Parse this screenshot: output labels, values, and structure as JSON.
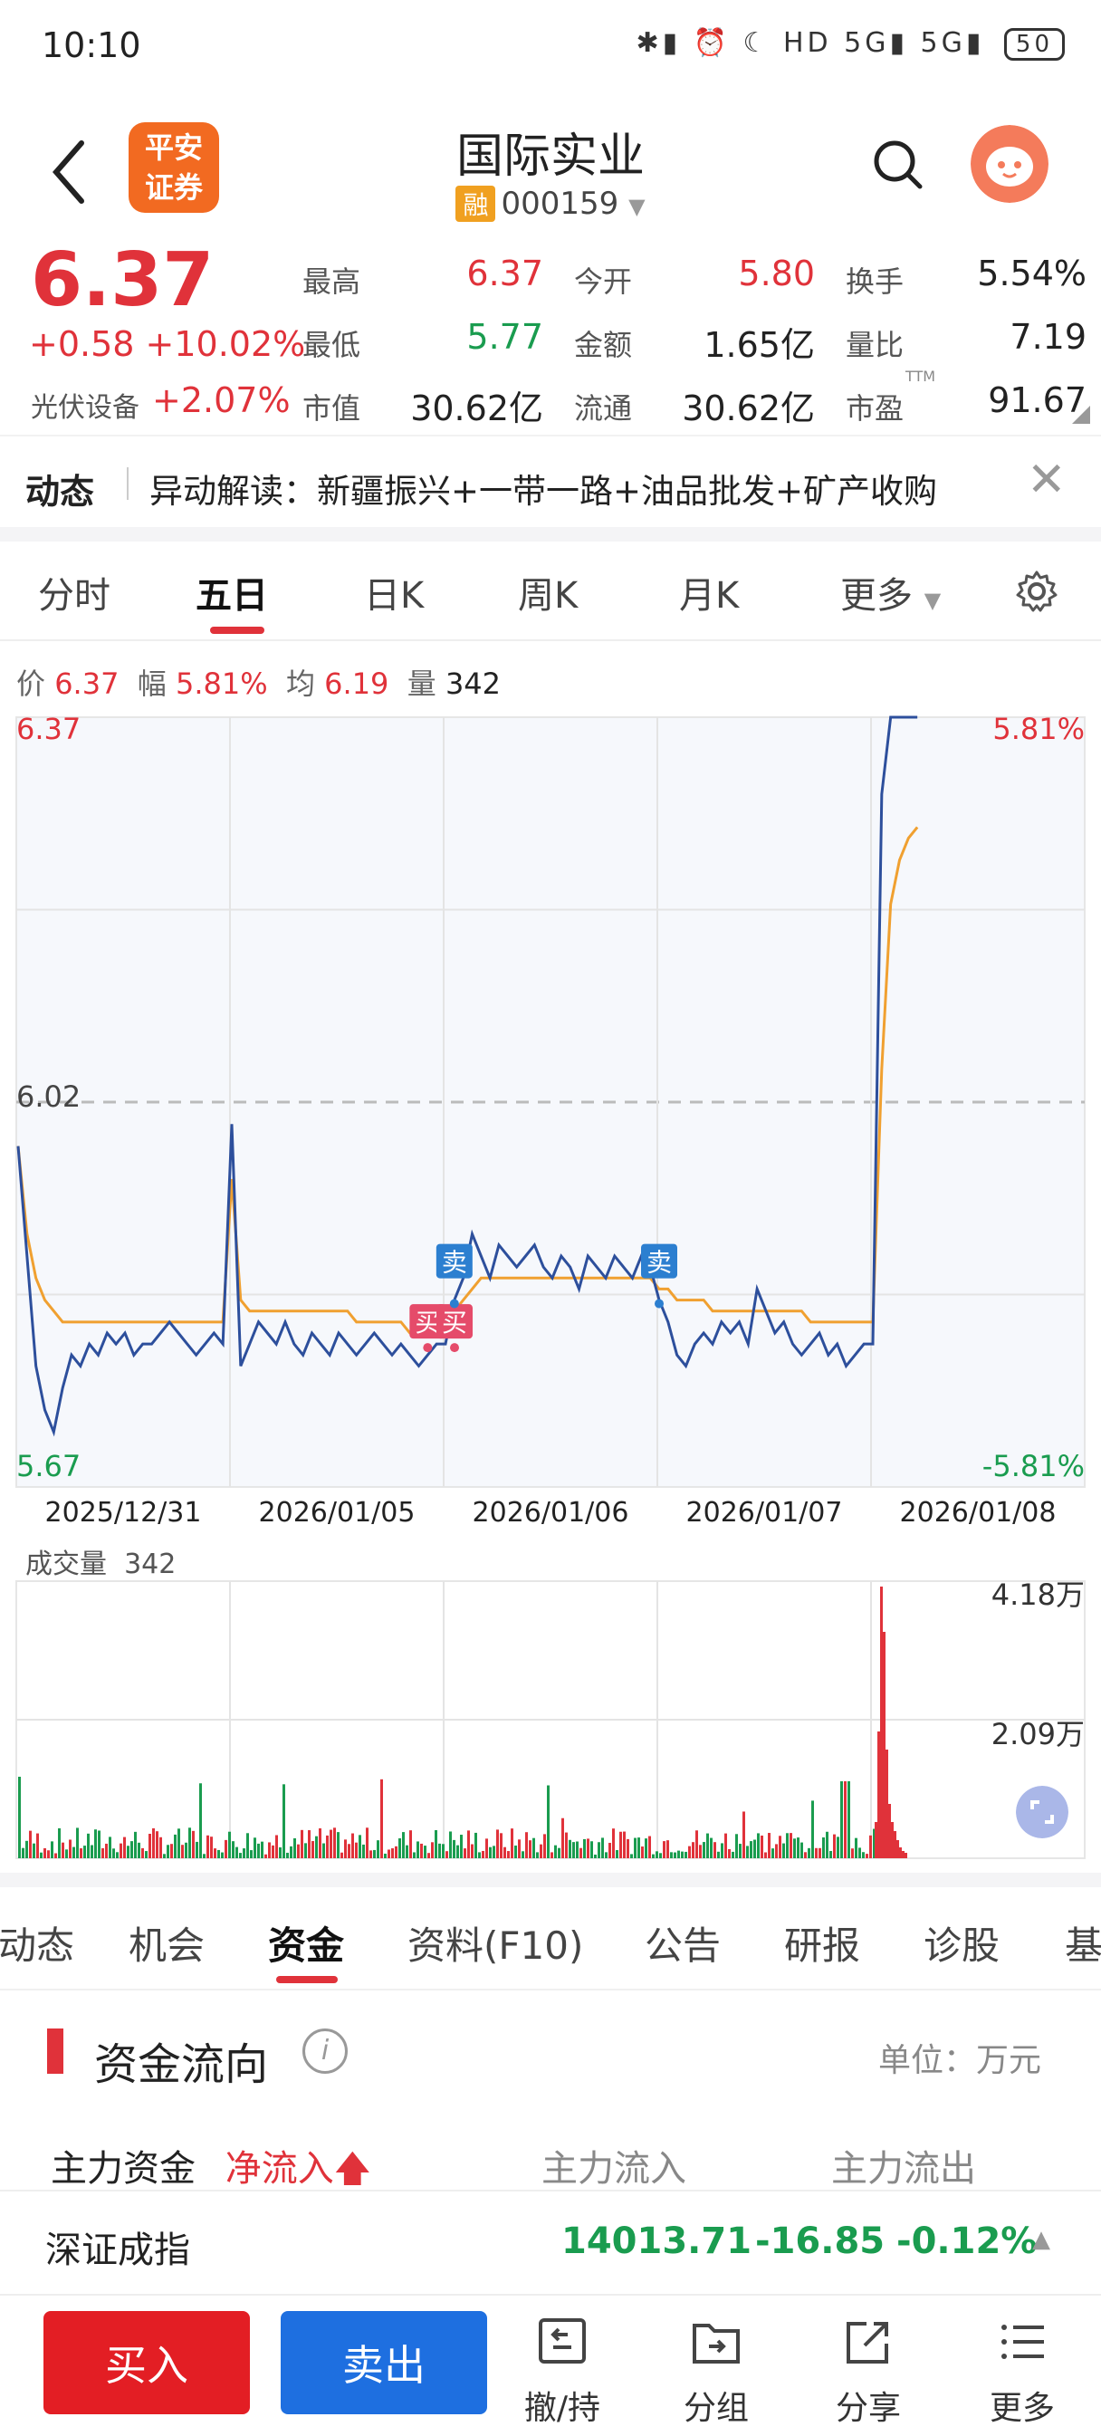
{
  "status_bar": {
    "time": "10:10",
    "icons": "✱▮ ⏰ ☾ HD 5G▮ 5G▮",
    "battery": "50"
  },
  "header": {
    "logo_text_1": "平安",
    "logo_text_2": "证券",
    "title": "国际实业",
    "rong": "融",
    "code": "000159"
  },
  "quote": {
    "price": "6.37",
    "change": "+0.58 +10.02%",
    "sector_name": "光伏设备",
    "sector_change": "+2.07%",
    "rows": [
      [
        {
          "label": "最高",
          "value": "6.37",
          "color": "red"
        },
        {
          "label": "今开",
          "value": "5.80",
          "color": "red"
        },
        {
          "label": "换手",
          "value": "5.54%",
          "color": "black"
        }
      ],
      [
        {
          "label": "最低",
          "value": "5.77",
          "color": "green"
        },
        {
          "label": "金额",
          "value": "1.65亿",
          "color": "black"
        },
        {
          "label": "量比",
          "value": "7.19",
          "color": "black"
        }
      ],
      [
        {
          "label": "市值",
          "value": "30.62亿",
          "color": "black"
        },
        {
          "label": "流通",
          "value": "30.62亿",
          "color": "black"
        },
        {
          "label": "市盈",
          "value": "91.67",
          "color": "black"
        }
      ]
    ],
    "ttm": "TTM"
  },
  "news": {
    "tag": "动态",
    "text": "异动解读：新疆振兴+一带一路+油品批发+矿产收购"
  },
  "period_tabs": [
    "分时",
    "五日",
    "日K",
    "周K",
    "月K",
    "更多"
  ],
  "chart_info": {
    "price_label": "价",
    "price": "6.37",
    "amp_label": "幅",
    "amp": "5.81%",
    "avg_label": "均",
    "avg": "6.19",
    "vol_label": "量",
    "vol": "342"
  },
  "chart_data": {
    "type": "line",
    "y_top_label": "6.37",
    "y_mid_label": "6.02",
    "y_bottom_label": "5.67",
    "pct_top_label": "5.81%",
    "pct_bottom_label": "-5.81%",
    "ylim": [
      5.67,
      6.37
    ],
    "days": [
      "2025/12/31",
      "2026/01/05",
      "2026/01/06",
      "2026/01/07",
      "2026/01/08"
    ],
    "price_series": [
      [
        5.98,
        5.88,
        5.78,
        5.74,
        5.72,
        5.76,
        5.79,
        5.78,
        5.8,
        5.79,
        5.81,
        5.8,
        5.81,
        5.79,
        5.8,
        5.8,
        5.81,
        5.82,
        5.81,
        5.8,
        5.79,
        5.8,
        5.81,
        5.8
      ],
      [
        6.0,
        5.78,
        5.8,
        5.82,
        5.81,
        5.8,
        5.82,
        5.8,
        5.79,
        5.81,
        5.8,
        5.79,
        5.81,
        5.8,
        5.79,
        5.8,
        5.81,
        5.8,
        5.79,
        5.8,
        5.79,
        5.78,
        5.79,
        5.8
      ],
      [
        5.8,
        5.84,
        5.86,
        5.9,
        5.88,
        5.86,
        5.89,
        5.88,
        5.87,
        5.88,
        5.89,
        5.87,
        5.86,
        5.88,
        5.87,
        5.85,
        5.88,
        5.87,
        5.86,
        5.88,
        5.87,
        5.86,
        5.88,
        5.87
      ],
      [
        5.84,
        5.82,
        5.79,
        5.78,
        5.8,
        5.81,
        5.8,
        5.82,
        5.81,
        5.82,
        5.8,
        5.85,
        5.83,
        5.81,
        5.82,
        5.8,
        5.79,
        5.8,
        5.81,
        5.79,
        5.8,
        5.78,
        5.79,
        5.8
      ],
      [
        5.8,
        6.3,
        6.37,
        6.37,
        6.37,
        6.37
      ]
    ],
    "avg_series": [
      [
        5.98,
        5.9,
        5.86,
        5.84,
        5.83,
        5.82,
        5.82,
        5.82,
        5.82,
        5.82,
        5.82,
        5.82,
        5.82,
        5.82,
        5.82,
        5.82,
        5.82,
        5.82,
        5.82,
        5.82,
        5.82,
        5.82,
        5.82,
        5.82
      ],
      [
        5.95,
        5.84,
        5.83,
        5.83,
        5.83,
        5.83,
        5.83,
        5.83,
        5.83,
        5.83,
        5.83,
        5.83,
        5.83,
        5.83,
        5.82,
        5.82,
        5.82,
        5.82,
        5.82,
        5.82,
        5.81,
        5.81,
        5.81,
        5.81
      ],
      [
        5.81,
        5.83,
        5.84,
        5.85,
        5.86,
        5.86,
        5.86,
        5.86,
        5.86,
        5.86,
        5.86,
        5.86,
        5.86,
        5.86,
        5.86,
        5.86,
        5.86,
        5.86,
        5.86,
        5.86,
        5.86,
        5.86,
        5.86,
        5.86
      ],
      [
        5.85,
        5.85,
        5.84,
        5.84,
        5.84,
        5.84,
        5.83,
        5.83,
        5.83,
        5.83,
        5.83,
        5.83,
        5.83,
        5.83,
        5.83,
        5.83,
        5.83,
        5.82,
        5.82,
        5.82,
        5.82,
        5.82,
        5.82,
        5.82
      ],
      [
        5.82,
        6.05,
        6.2,
        6.24,
        6.26,
        6.27
      ]
    ],
    "markers": [
      {
        "label": "买",
        "type": "buy",
        "day": 1,
        "index": 22,
        "value": 5.8
      },
      {
        "label": "买",
        "type": "buy",
        "day": 2,
        "index": 0,
        "value": 5.8
      },
      {
        "label": "卖",
        "type": "sell",
        "day": 2,
        "index": 1,
        "value": 5.84
      },
      {
        "label": "卖",
        "type": "sell",
        "day": 3,
        "index": 0,
        "value": 5.84
      }
    ]
  },
  "volume": {
    "label": "成交量",
    "value": "342",
    "top_label": "4.18万",
    "mid_label": "2.09万",
    "max": 41800
  },
  "bottom_tabs": [
    "动态",
    "机会",
    "资金",
    "资料(F10)",
    "公告",
    "研报",
    "诊股",
    "基"
  ],
  "funds": {
    "title": "资金流向",
    "info": "i",
    "unit": "单位：万元",
    "col1": "主力资金",
    "net": "净流入",
    "col2": "主力流入",
    "col3": "主力流出"
  },
  "index": {
    "name": "深证成指",
    "value": "14013.71",
    "change": "-16.85",
    "pct": "-0.12%"
  },
  "bottom_bar": {
    "buy": "买入",
    "sell": "卖出",
    "items": [
      "撤/持",
      "分组",
      "分享",
      "更多"
    ]
  }
}
